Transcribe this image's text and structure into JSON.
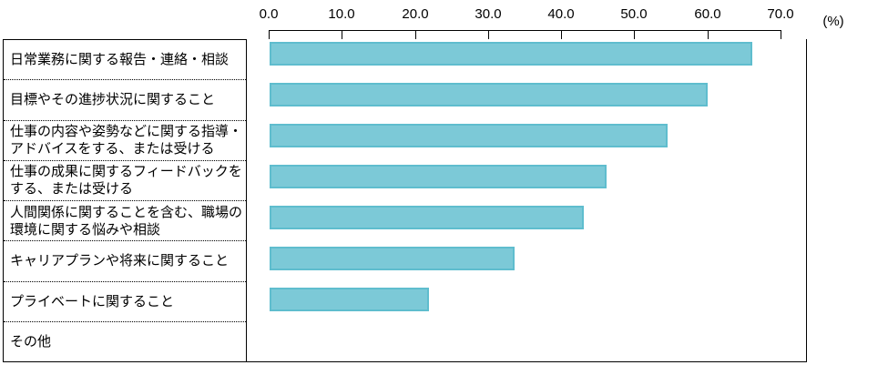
{
  "chart_data": {
    "type": "bar",
    "orientation": "horizontal",
    "title": "",
    "xlabel": "(%)",
    "ylabel": "",
    "xlim": [
      0,
      70
    ],
    "xticks": [
      "0.0",
      "10.0",
      "20.0",
      "30.0",
      "40.0",
      "50.0",
      "60.0",
      "70.0"
    ],
    "grid": false,
    "legend": null,
    "categories": [
      "日常業務に関する報告・連絡・相談",
      "目標やその進捗状況に関すること",
      "仕事の内容や姿勢などに関する指導・アドバイスをする、または受ける",
      "仕事の成果に関するフィードバックをする、または受ける",
      "人間関係に関することを含む、職場の環境に関する悩みや相談",
      "キャリアプランや将来に関すること",
      "プライベートに関すること",
      "その他"
    ],
    "values": [
      66.0,
      59.9,
      54.4,
      46.1,
      43.0,
      33.5,
      21.8,
      0.0
    ],
    "bar_color": "#7CC9D7",
    "bar_border_color": "#5FBDCE",
    "axis_color": "#000000"
  }
}
